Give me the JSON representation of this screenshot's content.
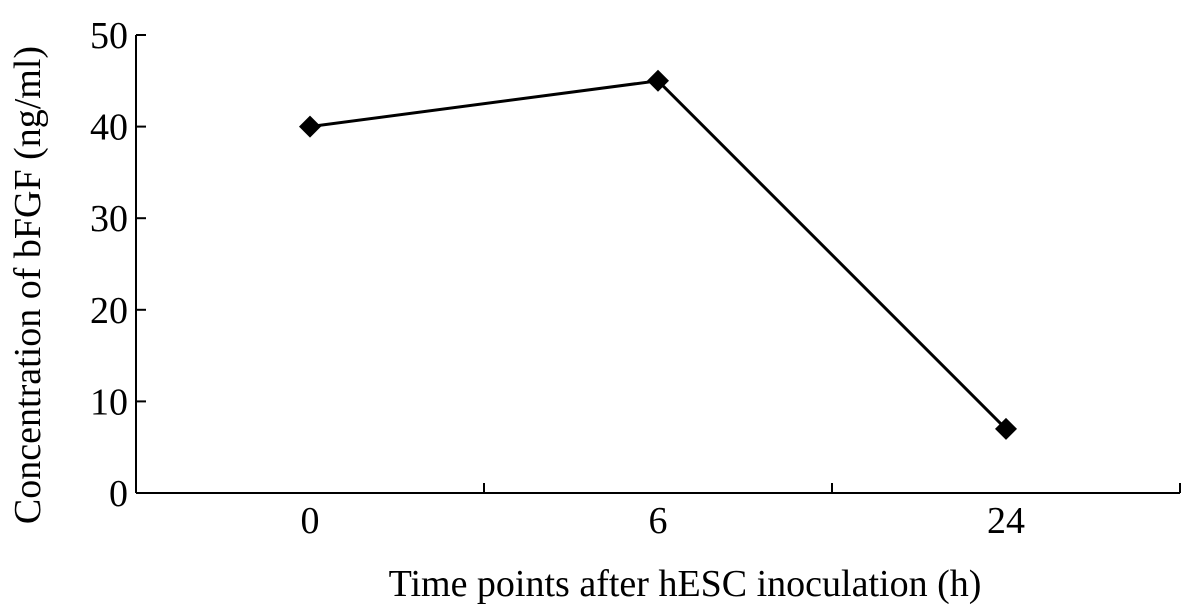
{
  "chart_data": {
    "type": "line",
    "title": "",
    "xlabel": "Time points after hESC inoculation (h)",
    "ylabel": "Concentration of bFGF (ng/ml)",
    "categories": [
      "0",
      "6",
      "24"
    ],
    "series": [
      {
        "values": [
          40,
          45,
          7
        ],
        "color": "#000000",
        "marker": "diamond"
      }
    ],
    "ylim": [
      0,
      50
    ],
    "yticks": [
      "0",
      "10",
      "20",
      "30",
      "40",
      "50"
    ],
    "grid": false,
    "legend": "none"
  }
}
